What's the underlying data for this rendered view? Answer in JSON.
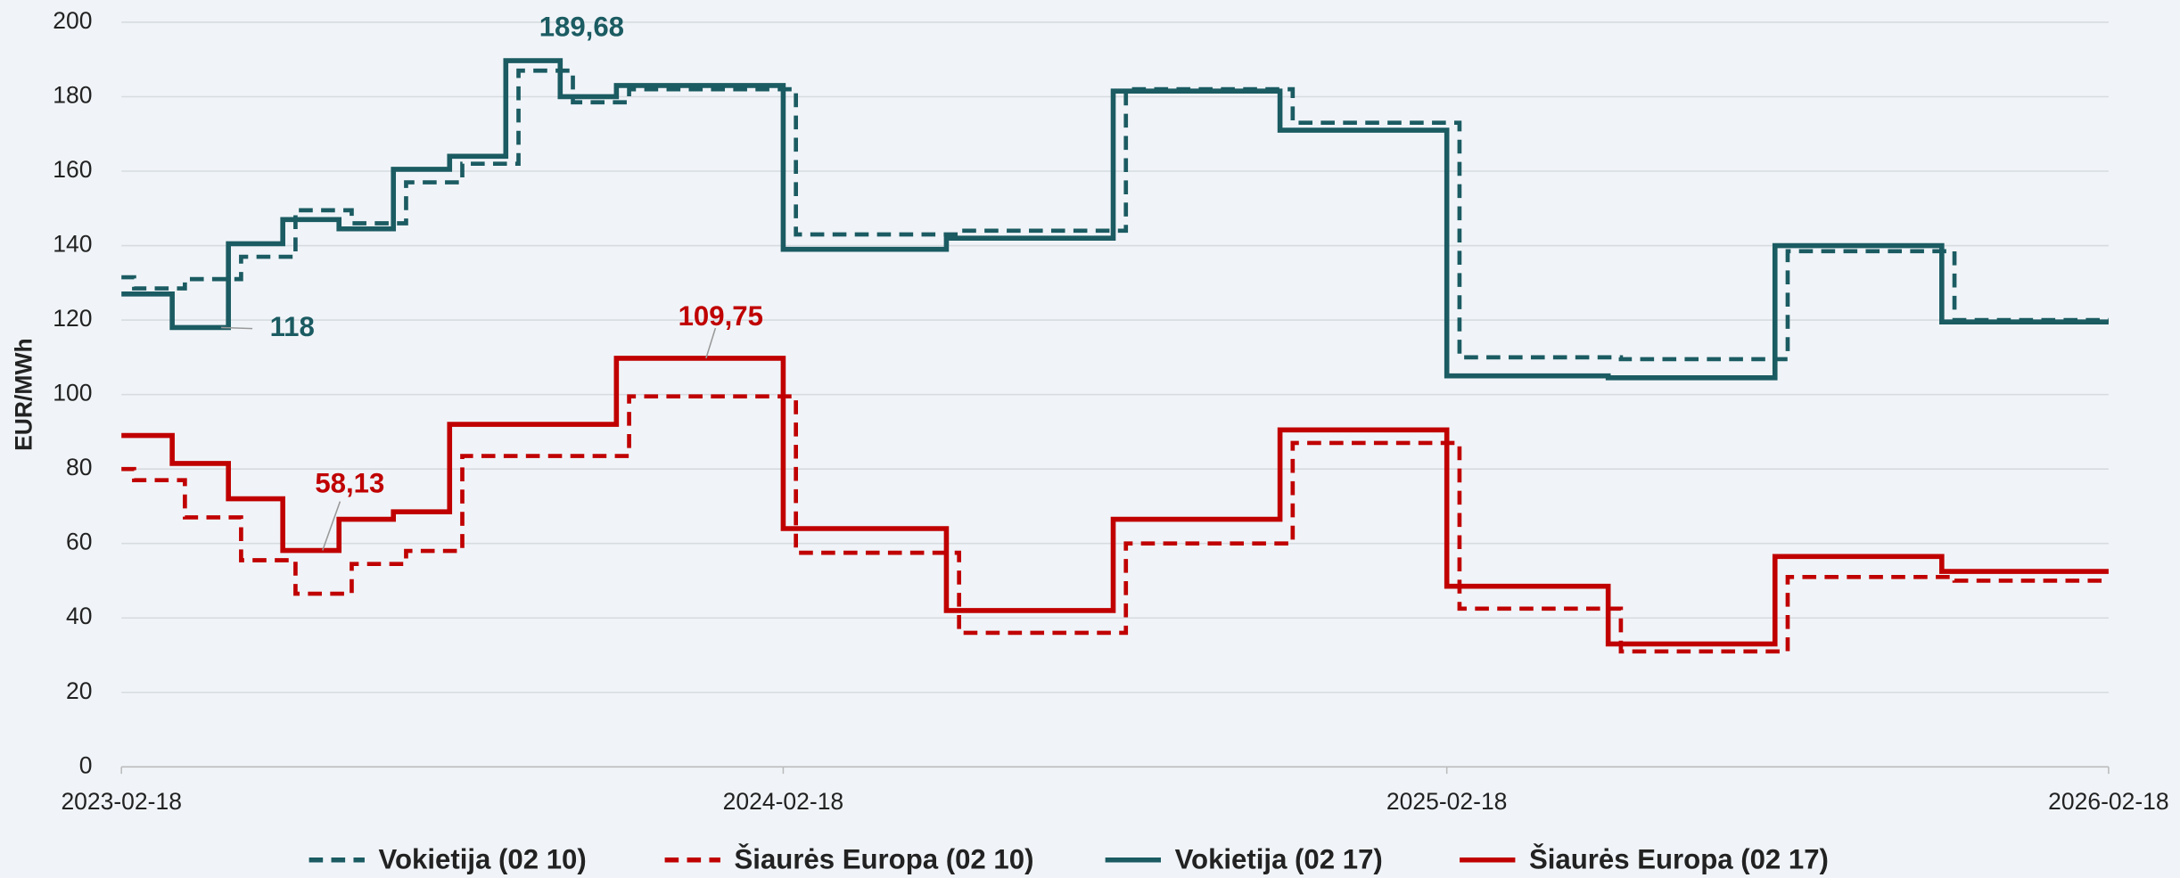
{
  "chart_data": {
    "type": "line",
    "step": "post",
    "y_label": "EUR/MWh",
    "xlim": [
      "2023-02-18",
      "2026-02-18"
    ],
    "xticks": [
      "2023-02-18",
      "2024-02-18",
      "2025-02-18",
      "2026-02-18"
    ],
    "ylim": [
      0,
      200
    ],
    "yticks": [
      0,
      20,
      40,
      60,
      80,
      100,
      120,
      140,
      160,
      180,
      200
    ],
    "grid": true,
    "legend": "bottom",
    "series": [
      {
        "name": "Vokietija (02 10)",
        "color": "#1b5b62",
        "dashed": true,
        "x": [
          "2023-02-18",
          "2023-02-25",
          "2023-03-25",
          "2023-04-25",
          "2023-05-25",
          "2023-06-25",
          "2023-07-25",
          "2023-08-25",
          "2023-09-25",
          "2023-10-25",
          "2023-11-25",
          "2024-02-25",
          "2024-05-25",
          "2024-08-25",
          "2024-11-25",
          "2025-02-25",
          "2025-05-25",
          "2025-08-25",
          "2025-11-25"
        ],
        "values": [
          131.5,
          128.5,
          131,
          137,
          149.5,
          146,
          157,
          162,
          187,
          178.5,
          182,
          143,
          144,
          182,
          173,
          110,
          109.5,
          138.5,
          120
        ]
      },
      {
        "name": "Šiaurės Europa (02 10)",
        "color": "#c00000",
        "dashed": true,
        "x": [
          "2023-02-18",
          "2023-02-25",
          "2023-03-25",
          "2023-04-25",
          "2023-05-25",
          "2023-06-25",
          "2023-07-25",
          "2023-08-25",
          "2023-11-25",
          "2024-02-25",
          "2024-05-25",
          "2024-08-25",
          "2024-11-25",
          "2025-02-25",
          "2025-05-25",
          "2025-08-25",
          "2025-11-25"
        ],
        "values": [
          80,
          77,
          67,
          55.5,
          46.5,
          54.5,
          58,
          83.5,
          99.5,
          57.5,
          36,
          60,
          87,
          42.5,
          31,
          51,
          50
        ]
      },
      {
        "name": "Vokietija (02 17)",
        "color": "#1b5b62",
        "dashed": false,
        "x": [
          "2023-02-18",
          "2023-03-18",
          "2023-04-18",
          "2023-05-18",
          "2023-06-18",
          "2023-07-18",
          "2023-08-18",
          "2023-09-18",
          "2023-10-18",
          "2023-11-18",
          "2024-02-18",
          "2024-05-18",
          "2024-08-18",
          "2024-11-18",
          "2025-02-18",
          "2025-05-18",
          "2025-08-18",
          "2025-11-18"
        ],
        "values": [
          127,
          118,
          140.5,
          147,
          144.5,
          160.5,
          164,
          189.68,
          180,
          183,
          139,
          142,
          181.5,
          171,
          105,
          104.5,
          140,
          119.5
        ],
        "value_labels": [
          null,
          "118",
          null,
          null,
          null,
          null,
          null,
          "189,68",
          null,
          null,
          null,
          null,
          null,
          null,
          null,
          null,
          null,
          null
        ]
      },
      {
        "name": "Šiaurės Europa (02 17)",
        "color": "#c00000",
        "dashed": false,
        "x": [
          "2023-02-18",
          "2023-03-18",
          "2023-04-18",
          "2023-05-18",
          "2023-06-18",
          "2023-07-18",
          "2023-08-18",
          "2023-11-18",
          "2024-02-18",
          "2024-05-18",
          "2024-08-18",
          "2024-11-18",
          "2025-02-18",
          "2025-05-18",
          "2025-08-18",
          "2025-11-18"
        ],
        "values": [
          89,
          81.5,
          72,
          58.13,
          66.5,
          68.5,
          92,
          109.75,
          64,
          42,
          66.5,
          90.5,
          48.5,
          33,
          56.5,
          52.5
        ],
        "value_labels": [
          null,
          null,
          null,
          "58,13",
          null,
          null,
          null,
          "109,75",
          null,
          null,
          null,
          null,
          null,
          null,
          null,
          null
        ]
      }
    ]
  }
}
